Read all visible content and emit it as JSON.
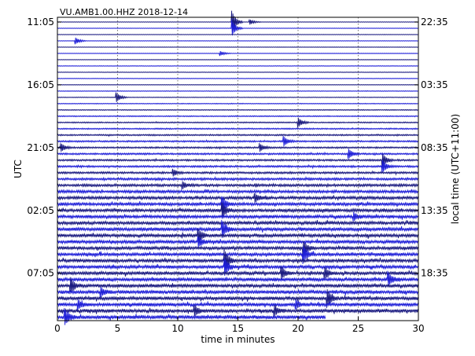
{
  "chart_data": {
    "type": "line",
    "title": "VU.AMB1.00.HHZ 2018-12-14",
    "xlabel": "time in minutes",
    "ylabel_left": "UTC",
    "ylabel_right": "local time (UTC+11:00)",
    "xlim": [
      0,
      30
    ],
    "x_ticks": [
      0,
      5,
      10,
      15,
      20,
      25,
      30
    ],
    "x_tick_labels": [
      "0",
      "5",
      "10",
      "15",
      "20",
      "25",
      "30"
    ],
    "left_tick_labels": [
      "11:05",
      "16:05",
      "21:05",
      "02:05",
      "07:05"
    ],
    "right_tick_labels": [
      "22:35",
      "03:35",
      "08:35",
      "13:35",
      "18:35"
    ],
    "left_tick_rows": [
      0,
      10,
      20,
      30,
      40
    ],
    "row_count": 48,
    "row_minutes": 30,
    "last_row_end_minute": 22.3,
    "grid": true,
    "colors": [
      "#1a1a80",
      "#1f1fd8"
    ],
    "activity_by_row": [
      0.02,
      0.01,
      0.02,
      0.03,
      0.02,
      0.02,
      0.02,
      0.03,
      0.03,
      0.03,
      0.04,
      0.06,
      0.08,
      0.1,
      0.14,
      0.18,
      0.22,
      0.26,
      0.3,
      0.34,
      0.36,
      0.4,
      0.42,
      0.44,
      0.48,
      0.56,
      0.64,
      0.72,
      0.78,
      0.82,
      0.84,
      0.86,
      0.88,
      0.9,
      0.88,
      0.86,
      0.84,
      0.85,
      0.86,
      0.88,
      0.9,
      0.92,
      0.94,
      0.95,
      0.96,
      0.97,
      0.98,
      0.98
    ],
    "events": [
      {
        "row": 0,
        "minute": 14.5,
        "amplitude": 14
      },
      {
        "row": 1,
        "minute": 14.5,
        "amplitude": 10
      },
      {
        "row": 0,
        "minute": 16.0,
        "amplitude": 3
      },
      {
        "row": 3,
        "minute": 1.5,
        "amplitude": 4
      },
      {
        "row": 5,
        "minute": 13.5,
        "amplitude": 3
      },
      {
        "row": 12,
        "minute": 4.9,
        "amplitude": 6
      },
      {
        "row": 16,
        "minute": 20.0,
        "amplitude": 6
      },
      {
        "row": 20,
        "minute": 0.3,
        "amplitude": 5
      },
      {
        "row": 20,
        "minute": 16.8,
        "amplitude": 5
      },
      {
        "row": 19,
        "minute": 18.8,
        "amplitude": 6
      },
      {
        "row": 21,
        "minute": 24.2,
        "amplitude": 6
      },
      {
        "row": 22,
        "minute": 27.0,
        "amplitude": 8
      },
      {
        "row": 23,
        "minute": 27.0,
        "amplitude": 8
      },
      {
        "row": 24,
        "minute": 9.6,
        "amplitude": 4
      },
      {
        "row": 26,
        "minute": 10.4,
        "amplitude": 4
      },
      {
        "row": 28,
        "minute": 16.4,
        "amplitude": 5
      },
      {
        "row": 29,
        "minute": 13.7,
        "amplitude": 9
      },
      {
        "row": 30,
        "minute": 13.7,
        "amplitude": 9
      },
      {
        "row": 31,
        "minute": 24.6,
        "amplitude": 5
      },
      {
        "row": 33,
        "minute": 13.7,
        "amplitude": 10
      },
      {
        "row": 34,
        "minute": 11.7,
        "amplitude": 8
      },
      {
        "row": 35,
        "minute": 11.7,
        "amplitude": 6
      },
      {
        "row": 36,
        "minute": 20.4,
        "amplitude": 9
      },
      {
        "row": 37,
        "minute": 20.4,
        "amplitude": 11
      },
      {
        "row": 38,
        "minute": 13.9,
        "amplitude": 12
      },
      {
        "row": 39,
        "minute": 13.9,
        "amplitude": 10
      },
      {
        "row": 40,
        "minute": 18.6,
        "amplitude": 7
      },
      {
        "row": 40,
        "minute": 22.2,
        "amplitude": 7
      },
      {
        "row": 41,
        "minute": 27.5,
        "amplitude": 8
      },
      {
        "row": 42,
        "minute": 1.1,
        "amplitude": 9
      },
      {
        "row": 43,
        "minute": 3.6,
        "amplitude": 5
      },
      {
        "row": 44,
        "minute": 22.4,
        "amplitude": 11
      },
      {
        "row": 45,
        "minute": 1.7,
        "amplitude": 6
      },
      {
        "row": 45,
        "minute": 19.8,
        "amplitude": 5
      },
      {
        "row": 46,
        "minute": 11.4,
        "amplitude": 6
      },
      {
        "row": 46,
        "minute": 18.0,
        "amplitude": 6
      },
      {
        "row": 47,
        "minute": 0.6,
        "amplitude": 10
      }
    ]
  }
}
